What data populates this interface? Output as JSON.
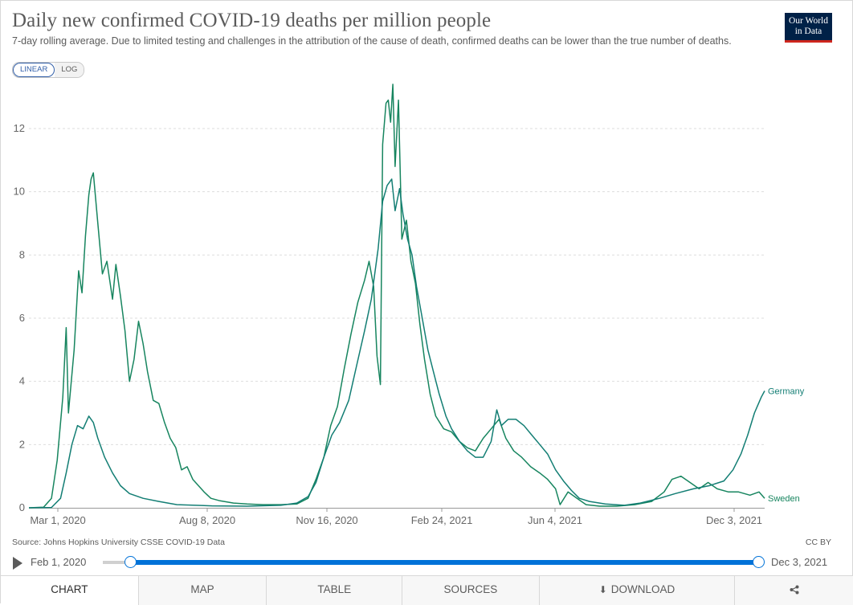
{
  "header": {
    "title": "Daily new confirmed COVID-19 deaths per million people",
    "subtitle": "7-day rolling average. Due to limited testing and challenges in the attribution of the cause of death, confirmed deaths can be lower than the true number of deaths.",
    "logo_line1": "Our World",
    "logo_line2": "in Data"
  },
  "scale_toggle": {
    "linear": "LINEAR",
    "log": "LOG",
    "selected": "LINEAR"
  },
  "chart_data": {
    "type": "line",
    "title": "Daily new confirmed COVID-19 deaths per million people",
    "xlabel": "",
    "ylabel": "",
    "x_ticks": [
      "Mar 1, 2020",
      "Aug 8, 2020",
      "Nov 16, 2020",
      "Feb 24, 2021",
      "Jun 4, 2021",
      "Dec 3, 2021"
    ],
    "y_ticks": [
      0,
      2,
      4,
      6,
      8,
      10,
      12
    ],
    "ylim": [
      0,
      13.5
    ],
    "xlim": [
      "2020-02-21",
      "2021-12-03"
    ],
    "grid": "horizontal dashed",
    "legend": "inline labels at line ends",
    "series": [
      {
        "name": "Sweden",
        "color": "#17855f",
        "points": [
          [
            "2020-02-21",
            0
          ],
          [
            "2020-03-05",
            0.02
          ],
          [
            "2020-03-12",
            0.3
          ],
          [
            "2020-03-17",
            1.5
          ],
          [
            "2020-03-22",
            3.5
          ],
          [
            "2020-03-25",
            5.7
          ],
          [
            "2020-03-27",
            3.0
          ],
          [
            "2020-04-01",
            5.0
          ],
          [
            "2020-04-05",
            7.5
          ],
          [
            "2020-04-08",
            6.8
          ],
          [
            "2020-04-11",
            8.6
          ],
          [
            "2020-04-14",
            9.9
          ],
          [
            "2020-04-16",
            10.4
          ],
          [
            "2020-04-18",
            10.6
          ],
          [
            "2020-04-20",
            9.8
          ],
          [
            "2020-04-22",
            9.0
          ],
          [
            "2020-04-26",
            7.4
          ],
          [
            "2020-04-30",
            7.8
          ],
          [
            "2020-05-05",
            6.6
          ],
          [
            "2020-05-08",
            7.7
          ],
          [
            "2020-05-12",
            6.7
          ],
          [
            "2020-05-16",
            5.6
          ],
          [
            "2020-05-20",
            4.0
          ],
          [
            "2020-05-24",
            4.7
          ],
          [
            "2020-05-28",
            5.9
          ],
          [
            "2020-06-01",
            5.2
          ],
          [
            "2020-06-05",
            4.3
          ],
          [
            "2020-06-10",
            3.4
          ],
          [
            "2020-06-15",
            3.3
          ],
          [
            "2020-06-20",
            2.7
          ],
          [
            "2020-06-25",
            2.2
          ],
          [
            "2020-06-30",
            1.9
          ],
          [
            "2020-07-05",
            1.2
          ],
          [
            "2020-07-10",
            1.3
          ],
          [
            "2020-07-15",
            0.9
          ],
          [
            "2020-07-20",
            0.7
          ],
          [
            "2020-07-25",
            0.5
          ],
          [
            "2020-07-31",
            0.3
          ],
          [
            "2020-08-08",
            0.22
          ],
          [
            "2020-08-20",
            0.15
          ],
          [
            "2020-09-01",
            0.12
          ],
          [
            "2020-09-15",
            0.1
          ],
          [
            "2020-10-01",
            0.1
          ],
          [
            "2020-10-15",
            0.12
          ],
          [
            "2020-10-25",
            0.3
          ],
          [
            "2020-11-01",
            0.9
          ],
          [
            "2020-11-08",
            1.6
          ],
          [
            "2020-11-14",
            2.6
          ],
          [
            "2020-11-20",
            3.2
          ],
          [
            "2020-11-26",
            4.4
          ],
          [
            "2020-12-02",
            5.5
          ],
          [
            "2020-12-08",
            6.5
          ],
          [
            "2020-12-14",
            7.2
          ],
          [
            "2020-12-18",
            7.8
          ],
          [
            "2020-12-22",
            7.0
          ],
          [
            "2020-12-25",
            4.8
          ],
          [
            "2020-12-28",
            3.9
          ],
          [
            "2020-12-30",
            11.5
          ],
          [
            "2021-01-02",
            12.8
          ],
          [
            "2021-01-04",
            12.9
          ],
          [
            "2021-01-06",
            12.2
          ],
          [
            "2021-01-08",
            13.4
          ],
          [
            "2021-01-10",
            10.8
          ],
          [
            "2021-01-13",
            12.9
          ],
          [
            "2021-01-16",
            8.5
          ],
          [
            "2021-01-20",
            9.1
          ],
          [
            "2021-01-24",
            7.8
          ],
          [
            "2021-01-28",
            7.1
          ],
          [
            "2021-02-01",
            5.8
          ],
          [
            "2021-02-05",
            4.7
          ],
          [
            "2021-02-10",
            3.6
          ],
          [
            "2021-02-15",
            2.9
          ],
          [
            "2021-02-22",
            2.5
          ],
          [
            "2021-03-01",
            2.4
          ],
          [
            "2021-03-08",
            2.1
          ],
          [
            "2021-03-15",
            1.9
          ],
          [
            "2021-03-22",
            1.8
          ],
          [
            "2021-03-29",
            2.2
          ],
          [
            "2021-04-05",
            2.5
          ],
          [
            "2021-04-12",
            2.8
          ],
          [
            "2021-04-18",
            2.2
          ],
          [
            "2021-04-25",
            1.8
          ],
          [
            "2021-05-02",
            1.6
          ],
          [
            "2021-05-10",
            1.3
          ],
          [
            "2021-05-18",
            1.1
          ],
          [
            "2021-05-25",
            0.9
          ],
          [
            "2021-06-01",
            0.6
          ],
          [
            "2021-06-05",
            0.1
          ],
          [
            "2021-06-12",
            0.5
          ],
          [
            "2021-06-20",
            0.3
          ],
          [
            "2021-06-28",
            0.1
          ],
          [
            "2021-07-10",
            0.05
          ],
          [
            "2021-07-25",
            0.05
          ],
          [
            "2021-08-10",
            0.1
          ],
          [
            "2021-08-25",
            0.2
          ],
          [
            "2021-09-05",
            0.5
          ],
          [
            "2021-09-12",
            0.9
          ],
          [
            "2021-09-20",
            1.0
          ],
          [
            "2021-09-28",
            0.8
          ],
          [
            "2021-10-06",
            0.6
          ],
          [
            "2021-10-14",
            0.8
          ],
          [
            "2021-10-22",
            0.6
          ],
          [
            "2021-11-01",
            0.5
          ],
          [
            "2021-11-10",
            0.5
          ],
          [
            "2021-11-20",
            0.4
          ],
          [
            "2021-11-28",
            0.5
          ],
          [
            "2021-12-03",
            0.3
          ]
        ]
      },
      {
        "name": "Germany",
        "color": "#137e74",
        "points": [
          [
            "2020-02-21",
            0
          ],
          [
            "2020-03-12",
            0.01
          ],
          [
            "2020-03-20",
            0.3
          ],
          [
            "2020-03-25",
            1.1
          ],
          [
            "2020-03-30",
            2.0
          ],
          [
            "2020-04-04",
            2.6
          ],
          [
            "2020-04-09",
            2.5
          ],
          [
            "2020-04-14",
            2.9
          ],
          [
            "2020-04-18",
            2.7
          ],
          [
            "2020-04-22",
            2.2
          ],
          [
            "2020-04-28",
            1.6
          ],
          [
            "2020-05-05",
            1.1
          ],
          [
            "2020-05-12",
            0.7
          ],
          [
            "2020-05-20",
            0.45
          ],
          [
            "2020-06-01",
            0.3
          ],
          [
            "2020-06-15",
            0.2
          ],
          [
            "2020-07-01",
            0.1
          ],
          [
            "2020-08-01",
            0.06
          ],
          [
            "2020-09-01",
            0.05
          ],
          [
            "2020-10-01",
            0.08
          ],
          [
            "2020-10-15",
            0.15
          ],
          [
            "2020-10-25",
            0.35
          ],
          [
            "2020-11-01",
            0.8
          ],
          [
            "2020-11-08",
            1.6
          ],
          [
            "2020-11-15",
            2.3
          ],
          [
            "2020-11-22",
            2.7
          ],
          [
            "2020-11-30",
            3.4
          ],
          [
            "2020-12-07",
            4.5
          ],
          [
            "2020-12-14",
            5.6
          ],
          [
            "2020-12-20",
            6.6
          ],
          [
            "2020-12-26",
            8.2
          ],
          [
            "2020-12-30",
            9.7
          ],
          [
            "2021-01-03",
            10.2
          ],
          [
            "2021-01-07",
            10.4
          ],
          [
            "2021-01-10",
            9.4
          ],
          [
            "2021-01-14",
            10.1
          ],
          [
            "2021-01-17",
            9.3
          ],
          [
            "2021-01-21",
            8.5
          ],
          [
            "2021-01-25",
            8.0
          ],
          [
            "2021-01-29",
            7.0
          ],
          [
            "2021-02-03",
            6.0
          ],
          [
            "2021-02-08",
            5.0
          ],
          [
            "2021-02-13",
            4.3
          ],
          [
            "2021-02-18",
            3.6
          ],
          [
            "2021-02-24",
            2.9
          ],
          [
            "2021-03-01",
            2.5
          ],
          [
            "2021-03-08",
            2.1
          ],
          [
            "2021-03-15",
            1.8
          ],
          [
            "2021-03-22",
            1.6
          ],
          [
            "2021-03-29",
            1.6
          ],
          [
            "2021-04-05",
            2.1
          ],
          [
            "2021-04-10",
            3.1
          ],
          [
            "2021-04-14",
            2.6
          ],
          [
            "2021-04-20",
            2.8
          ],
          [
            "2021-04-27",
            2.8
          ],
          [
            "2021-05-04",
            2.6
          ],
          [
            "2021-05-11",
            2.3
          ],
          [
            "2021-05-18",
            2.0
          ],
          [
            "2021-05-25",
            1.7
          ],
          [
            "2021-06-01",
            1.2
          ],
          [
            "2021-06-08",
            0.85
          ],
          [
            "2021-06-15",
            0.55
          ],
          [
            "2021-06-22",
            0.3
          ],
          [
            "2021-07-01",
            0.2
          ],
          [
            "2021-07-15",
            0.12
          ],
          [
            "2021-08-01",
            0.08
          ],
          [
            "2021-08-15",
            0.15
          ],
          [
            "2021-09-01",
            0.3
          ],
          [
            "2021-09-15",
            0.45
          ],
          [
            "2021-10-01",
            0.6
          ],
          [
            "2021-10-15",
            0.7
          ],
          [
            "2021-10-28",
            0.85
          ],
          [
            "2021-11-05",
            1.2
          ],
          [
            "2021-11-12",
            1.7
          ],
          [
            "2021-11-18",
            2.3
          ],
          [
            "2021-11-24",
            3.0
          ],
          [
            "2021-11-30",
            3.5
          ],
          [
            "2021-12-03",
            3.7
          ]
        ]
      }
    ]
  },
  "footer": {
    "source": "Source: Johns Hopkins University CSSE COVID-19 Data",
    "license": "CC BY"
  },
  "timeline": {
    "start_label": "Feb 1, 2020",
    "end_label": "Dec 3, 2021"
  },
  "tabs": {
    "chart": "CHART",
    "map": "MAP",
    "table": "TABLE",
    "sources": "SOURCES",
    "download": "DOWNLOAD",
    "share_icon": "share-icon",
    "download_icon": "download-icon",
    "selected": "CHART"
  }
}
